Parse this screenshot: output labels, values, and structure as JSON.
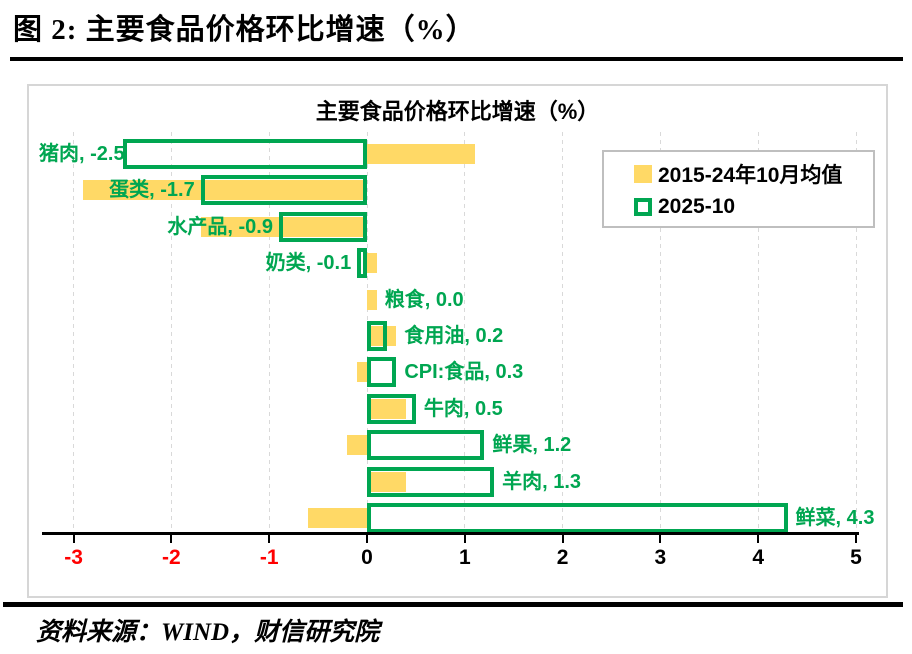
{
  "header": {
    "title": "图 2:  主要食品价格环比增速（%）"
  },
  "footer": {
    "source": "资料来源：WIND，财信研究院"
  },
  "chart_data": {
    "type": "bar",
    "orientation": "horizontal",
    "title": "主要食品价格环比增速（%）",
    "categories": [
      "猪肉",
      "蛋类",
      "水产品",
      "奶类",
      "粮食",
      "食用油",
      "CPI:食品",
      "牛肉",
      "鲜果",
      "羊肉",
      "鲜菜"
    ],
    "series": [
      {
        "name": "2015-24年10月均值",
        "color": "#FFD966",
        "style": "solid",
        "values": [
          1.1,
          -2.9,
          -1.7,
          0.1,
          0.1,
          0.3,
          -0.1,
          0.4,
          -0.2,
          0.4,
          -0.6
        ]
      },
      {
        "name": "2025-10",
        "color": "#00A651",
        "style": "outline",
        "values": [
          -2.5,
          -1.7,
          -0.9,
          -0.1,
          0.0,
          0.2,
          0.3,
          0.5,
          1.2,
          1.3,
          4.3
        ]
      }
    ],
    "data_labels": [
      "猪肉, -2.5",
      "蛋类, -1.7",
      "水产品, -0.9",
      "奶类, -0.1",
      "粮食, 0.0",
      "食用油, 0.2",
      "CPI:食品, 0.3",
      "牛肉, 0.5",
      "鲜果, 1.2",
      "羊肉, 1.3",
      "鲜菜, 4.3"
    ],
    "x_ticks": [
      -3,
      -2,
      -1,
      0,
      1,
      2,
      3,
      4,
      5
    ],
    "xlim": [
      -3.35,
      5.05
    ],
    "tick_color_negative": "#FF0000",
    "tick_color_positive": "#000000",
    "grid": "vertical-dashed",
    "legend_position": "upper-right"
  }
}
